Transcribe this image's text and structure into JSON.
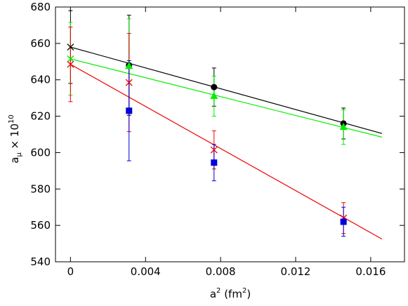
{
  "chart_data": {
    "type": "scatter",
    "xlabel": "a",
    "xlabel_sup": "2",
    "xlabel_unit": "(fm",
    "xlabel_unit_sup": "2",
    "xlabel_unit_close": ")",
    "ylabel_base": "a",
    "ylabel_sub": "μ",
    "ylabel_times": " × 10",
    "ylabel_sup": "10",
    "xlim": [
      -0.0008,
      0.0178
    ],
    "ylim": [
      540,
      680
    ],
    "xticks": [
      0,
      0.004,
      0.008,
      0.012,
      0.016
    ],
    "xtick_labels": [
      "0",
      "0.004",
      "0.008",
      "0.012",
      "0.016"
    ],
    "yticks": [
      540,
      560,
      580,
      600,
      620,
      640,
      660,
      680
    ],
    "ytick_labels": [
      "540",
      "560",
      "580",
      "600",
      "620",
      "640",
      "660",
      "680"
    ],
    "grid": false,
    "series": [
      {
        "color": "#000000",
        "marker": "circle",
        "points": [
          {
            "x": 0.00312,
            "y": 648,
            "err": 27.5
          },
          {
            "x": 0.00765,
            "y": 636,
            "err": 10.5
          },
          {
            "x": 0.01455,
            "y": 616,
            "err": 8.5
          }
        ],
        "fit": {
          "x": [
            0,
            0.0166
          ],
          "y": [
            658,
            610.5
          ]
        },
        "extrapolated": {
          "x": 0,
          "y": 658,
          "err": 20
        }
      },
      {
        "color": "#00ee00",
        "marker": "triangle",
        "points": [
          {
            "x": 0.00312,
            "y": 647.5,
            "err": 26
          },
          {
            "x": 0.00765,
            "y": 631,
            "err": 11
          },
          {
            "x": 0.01455,
            "y": 614,
            "err": 9.5
          }
        ],
        "fit": {
          "x": [
            0,
            0.0166
          ],
          "y": [
            651.5,
            608.5
          ]
        },
        "extrapolated": {
          "x": 0,
          "y": 651.5,
          "err": 20
        }
      },
      {
        "color": "#ee0000",
        "marker": "x",
        "points": [
          {
            "x": 0.00312,
            "y": 638.5,
            "err": 27
          },
          {
            "x": 0.00765,
            "y": 601.5,
            "err": 10.5
          },
          {
            "x": 0.01455,
            "y": 564,
            "err": 8.5
          }
        ],
        "fit": {
          "x": [
            0,
            0.0166
          ],
          "y": [
            648.5,
            552.5
          ]
        },
        "extrapolated": {
          "x": 0,
          "y": 648.5,
          "err": 20.5
        }
      },
      {
        "color": "#0000dd",
        "marker": "square",
        "points": [
          {
            "x": 0.00312,
            "y": 623,
            "err": 27.5
          },
          {
            "x": 0.00765,
            "y": 594.5,
            "err": 10
          },
          {
            "x": 0.01455,
            "y": 562,
            "err": 8
          }
        ]
      }
    ]
  }
}
